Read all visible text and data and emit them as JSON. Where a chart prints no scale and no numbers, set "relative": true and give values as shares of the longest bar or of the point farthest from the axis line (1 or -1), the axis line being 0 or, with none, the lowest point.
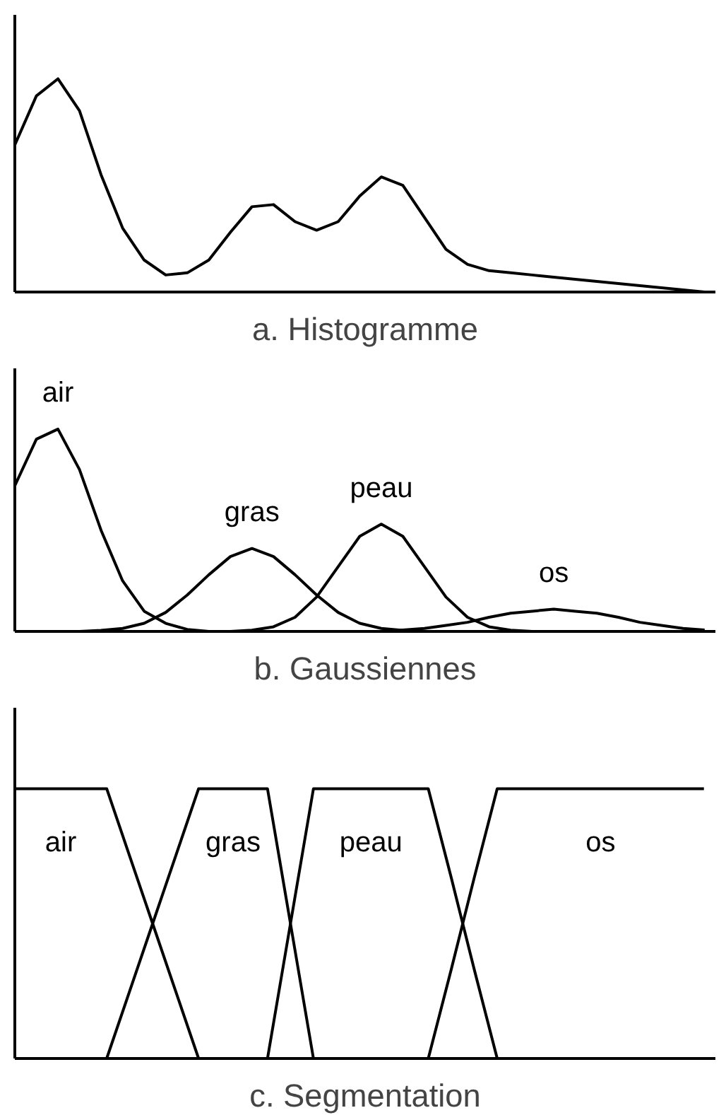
{
  "chart_data": [
    {
      "type": "line",
      "title": "a. Histogramme",
      "relative": true,
      "categories": [
        null,
        null,
        null,
        null,
        null,
        null,
        null,
        null,
        null,
        null,
        null,
        null,
        null,
        null,
        null,
        null,
        null,
        null,
        null,
        null,
        null,
        null,
        null,
        null,
        null,
        null,
        null,
        null,
        null,
        null,
        null,
        null,
        null
      ],
      "series": [
        {
          "color": "#000000",
          "values": [
            0.69,
            0.92,
            1.0,
            0.85,
            0.55,
            0.3,
            0.15,
            0.08,
            0.09,
            0.15,
            0.28,
            0.4,
            0.41,
            0.33,
            0.29,
            0.33,
            0.45,
            0.54,
            0.5,
            0.35,
            0.2,
            0.13,
            0.1,
            0.09,
            0.08,
            0.07,
            0.06,
            0.05,
            0.04,
            0.03,
            0.02,
            0.01,
            0
          ]
        }
      ]
    },
    {
      "type": "line",
      "title": "b. Gaussiennes",
      "relative": true,
      "categories": [
        null,
        null,
        null,
        null,
        null,
        null,
        null,
        null,
        null,
        null,
        null,
        null,
        null,
        null,
        null,
        null,
        null,
        null,
        null,
        null,
        null,
        null,
        null,
        null,
        null,
        null,
        null,
        null,
        null,
        null,
        null,
        null,
        null
      ],
      "series": [
        {
          "name": "air",
          "color": "#000000",
          "values": [
            0.72,
            0.95,
            1,
            0.8,
            0.5,
            0.25,
            0.1,
            0.04,
            0.01,
            0,
            null,
            null,
            null,
            null,
            null,
            null,
            null,
            null,
            null,
            null,
            null,
            null,
            null,
            null,
            null,
            null,
            null,
            null,
            null,
            null,
            null,
            null,
            null
          ]
        },
        {
          "name": "gras",
          "color": "#000000",
          "values": [
            null,
            null,
            null,
            0,
            0.005,
            0.015,
            0.04,
            0.094,
            0.18,
            0.28,
            0.37,
            0.41,
            0.37,
            0.28,
            0.18,
            0.094,
            0.04,
            0.015,
            0.005,
            0,
            null,
            null,
            null,
            null,
            null,
            null,
            null,
            null,
            null,
            null,
            null,
            null,
            null
          ]
        },
        {
          "name": "peau",
          "color": "#000000",
          "values": [
            null,
            null,
            null,
            null,
            null,
            null,
            null,
            null,
            null,
            null,
            0,
            0.006,
            0.023,
            0.07,
            0.17,
            0.32,
            0.47,
            0.53,
            0.47,
            0.32,
            0.17,
            0.07,
            0.023,
            0.006,
            0,
            null,
            null,
            null,
            null,
            null,
            null,
            null,
            null
          ]
        },
        {
          "name": "os",
          "color": "#000000",
          "values": [
            null,
            null,
            null,
            null,
            null,
            null,
            null,
            null,
            null,
            null,
            null,
            null,
            null,
            null,
            null,
            null,
            null,
            0,
            0.007,
            0.015,
            0.03,
            0.045,
            0.07,
            0.09,
            0.1,
            0.11,
            0.1,
            0.09,
            0.07,
            0.045,
            0.03,
            0.015,
            0.007
          ]
        }
      ]
    },
    {
      "type": "line",
      "title": "c. Segmentation",
      "relative": true,
      "categories": [
        null,
        null,
        null,
        null,
        null,
        null,
        null,
        null,
        null,
        null,
        null,
        null,
        null,
        null,
        null,
        null,
        null,
        null,
        null,
        null,
        null,
        null,
        null,
        null,
        null,
        null,
        null,
        null,
        null,
        null,
        null
      ],
      "series": [
        {
          "name": "air",
          "color": "#000000",
          "values": [
            1,
            1,
            1,
            1,
            1,
            0.75,
            0.5,
            0.25,
            0,
            null,
            null,
            null,
            null,
            null,
            null,
            null,
            null,
            null,
            null,
            null,
            null,
            null,
            null,
            null,
            null,
            null,
            null,
            null,
            null,
            null,
            null
          ]
        },
        {
          "name": "gras",
          "color": "#000000",
          "values": [
            null,
            null,
            null,
            null,
            0,
            0.25,
            0.5,
            0.75,
            1,
            1,
            1,
            1,
            0.5,
            0,
            null,
            null,
            null,
            null,
            null,
            null,
            null,
            null,
            null,
            null,
            null,
            null,
            null,
            null,
            null,
            null,
            null
          ]
        },
        {
          "name": "peau",
          "color": "#000000",
          "values": [
            null,
            null,
            null,
            null,
            null,
            null,
            null,
            null,
            null,
            null,
            null,
            0,
            0.5,
            1,
            1,
            1,
            1,
            1,
            1,
            0.67,
            0.33,
            0,
            null,
            null,
            null,
            null,
            null,
            null,
            null,
            null,
            null
          ]
        },
        {
          "name": "os",
          "color": "#000000",
          "values": [
            null,
            null,
            null,
            null,
            null,
            null,
            null,
            null,
            null,
            null,
            null,
            null,
            null,
            null,
            null,
            null,
            null,
            null,
            0,
            0.33,
            0.67,
            1,
            1,
            1,
            1,
            1,
            1,
            1,
            1,
            1,
            1
          ]
        }
      ]
    }
  ]
}
